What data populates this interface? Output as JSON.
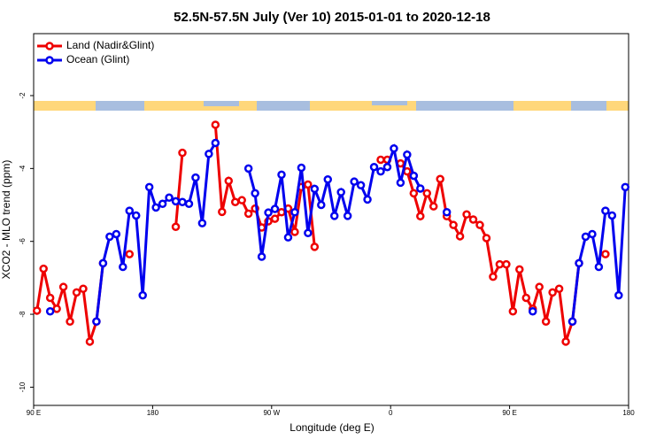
{
  "chart_data": {
    "type": "line",
    "title": "52.5N-57.5N July (Ver 10)   2015-01-01 to 2020-12-18",
    "xlabel": "Longitude (deg E)",
    "ylabel": "XCO2 - MLO trend (ppm)",
    "x": [
      92.5,
      97.5,
      102.5,
      107.5,
      112.5,
      117.5,
      122.5,
      127.5,
      132.5,
      137.5,
      142.5,
      147.5,
      152.5,
      157.5,
      162.5,
      167.5,
      172.5,
      177.5,
      182.5,
      187.5,
      192.5,
      197.5,
      202.5,
      207.5,
      212.5,
      217.5,
      222.5,
      227.5,
      232.5,
      237.5,
      242.5,
      247.5,
      252.5,
      257.5,
      262.5,
      267.5,
      272.5,
      277.5,
      282.5,
      287.5,
      292.5,
      297.5,
      302.5,
      307.5,
      312.5,
      317.5,
      322.5,
      327.5,
      332.5,
      337.5,
      342.5,
      347.5,
      352.5,
      357.5,
      362.5,
      367.5,
      372.5,
      377.5,
      382.5,
      387.5,
      392.5,
      397.5,
      402.5,
      407.5,
      412.5,
      417.5,
      422.5,
      427.5,
      432.5,
      437.5,
      442.5,
      447.5,
      452.5,
      457.5,
      462.5,
      467.5,
      472.5,
      477.5,
      482.5,
      487.5,
      492.5,
      497.5,
      502.5,
      507.5,
      512.5,
      517.5,
      522.5,
      527.5,
      532.5,
      537.5
    ],
    "series": [
      {
        "name": "Land (Nadir&Glint)",
        "color": "#ee0000",
        "values": [
          -7.9,
          -6.75,
          -7.55,
          -7.85,
          -7.25,
          -8.2,
          -7.4,
          -7.3,
          -8.75,
          -8.2,
          -6.6,
          null,
          null,
          null,
          -6.35,
          null,
          null,
          null,
          null,
          null,
          null,
          -5.6,
          -3.57,
          null,
          null,
          null,
          null,
          -2.8,
          -5.19,
          -4.34,
          -4.92,
          -4.87,
          -5.24,
          -5.1,
          -5.62,
          -5.45,
          -5.38,
          -5.2,
          -5.1,
          -5.74,
          -4.51,
          -4.44,
          -6.15,
          null,
          null,
          null,
          null,
          null,
          null,
          null,
          null,
          null,
          -3.76,
          -3.76,
          null,
          -3.86,
          -4.08,
          -4.68,
          -5.31,
          -4.68,
          -5.04,
          -4.29,
          -5.31,
          -5.55,
          -5.86,
          -5.26,
          -5.4,
          -5.55,
          -5.91,
          -6.97,
          -6.63,
          -6.63,
          -7.92,
          -6.77,
          -7.55,
          -7.85,
          -7.25,
          -8.2,
          -7.4,
          -7.3,
          -8.75,
          -8.2,
          -6.6,
          null,
          null,
          null,
          -6.35,
          null,
          null,
          null
        ]
      },
      {
        "name": "Ocean (Glint)",
        "color": "#0000ee",
        "values": [
          null,
          null,
          -7.92,
          null,
          null,
          null,
          null,
          null,
          null,
          -8.2,
          -6.6,
          -5.87,
          -5.8,
          -6.7,
          -5.16,
          -5.29,
          -7.48,
          -4.51,
          -5.07,
          -4.97,
          -4.8,
          -4.9,
          -4.92,
          -4.97,
          -4.25,
          -5.5,
          -3.6,
          -3.3,
          null,
          null,
          null,
          null,
          -4.0,
          -4.68,
          -6.42,
          -5.21,
          -5.11,
          -4.17,
          -5.89,
          -5.2,
          -3.98,
          -5.77,
          -4.56,
          -5.0,
          -4.3,
          -5.3,
          -4.65,
          -5.3,
          -4.36,
          -4.46,
          -4.85,
          -3.96,
          -4.08,
          -3.96,
          -3.45,
          -4.39,
          -3.62,
          -4.2,
          -4.55,
          null,
          null,
          null,
          -5.2,
          null,
          null,
          null,
          null,
          null,
          null,
          null,
          null,
          null,
          null,
          null,
          null,
          -7.92,
          null,
          null,
          null,
          null,
          null,
          -8.2,
          -6.6,
          -5.87,
          -5.8,
          -6.7,
          -5.16,
          -5.29,
          -7.48,
          -4.51
        ]
      }
    ],
    "xlim": [
      90,
      540
    ],
    "xticks": [
      {
        "value": 90,
        "label": "90 E"
      },
      180,
      {
        "value": 270,
        "label": "90 W"
      },
      {
        "value": 360,
        "label": "0"
      },
      {
        "value": 450,
        "label": "90 E"
      },
      {
        "value": 540,
        "label": "180"
      }
    ],
    "ylim": [
      -10.5,
      -0.3
    ],
    "yticks": [
      -10,
      -8,
      -6,
      -4,
      -2
    ],
    "legend": "top-left"
  }
}
